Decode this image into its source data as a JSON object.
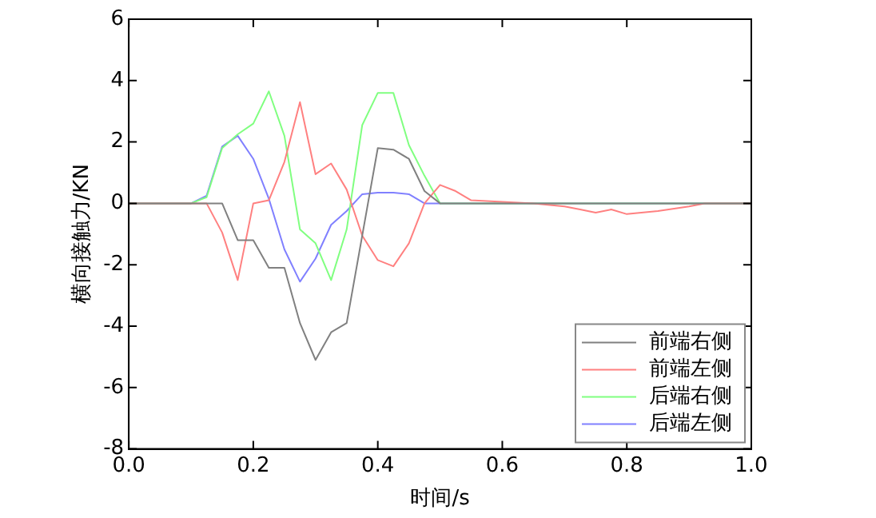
{
  "chart_data": {
    "type": "line",
    "xlabel": "时间/s",
    "ylabel": "横向接触力/KN",
    "xlim": [
      0,
      1
    ],
    "xticks": [
      {
        "value": 0,
        "label": "0.0"
      },
      0.2,
      0.4,
      0.6,
      0.8,
      {
        "value": 1,
        "label": "1.0"
      }
    ],
    "ylim": [
      -8,
      6
    ],
    "yticks": [
      -8,
      -6,
      -4,
      -2,
      0,
      2,
      4,
      6
    ],
    "grid": false,
    "legend": "bottom right",
    "marker": "none",
    "line_style": "solid",
    "series": [
      {
        "name": "前端右侧",
        "color": "#808080",
        "x": [
          0,
          0.15,
          0.175,
          0.2,
          0.225,
          0.25,
          0.275,
          0.3,
          0.325,
          0.35,
          0.4,
          0.425,
          0.45,
          0.475,
          0.5,
          1
        ],
        "values": [
          0,
          0,
          -1.2,
          -1.2,
          -2.1,
          -2.1,
          -3.9,
          -5.1,
          -4.2,
          -3.9,
          1.8,
          1.75,
          1.45,
          0.4,
          0,
          0
        ]
      },
      {
        "name": "前端左侧",
        "color": "#ff8080",
        "x": [
          0,
          0.125,
          0.15,
          0.175,
          0.2,
          0.225,
          0.25,
          0.275,
          0.3,
          0.325,
          0.35,
          0.375,
          0.4,
          0.425,
          0.45,
          0.475,
          0.5,
          0.525,
          0.55,
          0.6,
          0.65,
          0.7,
          0.725,
          0.75,
          0.775,
          0.8,
          0.85,
          0.9,
          0.925,
          1
        ],
        "values": [
          0,
          0,
          -0.95,
          -2.5,
          0,
          0.1,
          1.35,
          3.3,
          0.95,
          1.3,
          0.45,
          -1.05,
          -1.85,
          -2.05,
          -1.3,
          0,
          0.6,
          0.4,
          0.1,
          0.05,
          0,
          -0.1,
          -0.2,
          -0.3,
          -0.2,
          -0.35,
          -0.25,
          -0.1,
          0,
          0
        ]
      },
      {
        "name": "后端右侧",
        "color": "#80ff80",
        "x": [
          0,
          0.1,
          0.125,
          0.15,
          0.175,
          0.2,
          0.225,
          0.25,
          0.275,
          0.3,
          0.325,
          0.35,
          0.375,
          0.4,
          0.425,
          0.45,
          0.475,
          0.5,
          1
        ],
        "values": [
          0,
          0,
          0.2,
          1.8,
          2.25,
          2.6,
          3.65,
          2.2,
          -0.85,
          -1.3,
          -2.5,
          -0.85,
          2.55,
          3.6,
          3.6,
          1.9,
          0.9,
          0,
          0
        ]
      },
      {
        "name": "后端左侧",
        "color": "#8080ff",
        "x": [
          0,
          0.1,
          0.125,
          0.15,
          0.175,
          0.2,
          0.225,
          0.25,
          0.275,
          0.3,
          0.325,
          0.35,
          0.375,
          0.4,
          0.425,
          0.45,
          0.475,
          1
        ],
        "values": [
          0,
          0,
          0.25,
          1.85,
          2.2,
          1.45,
          0.15,
          -1.5,
          -2.55,
          -1.8,
          -0.7,
          -0.25,
          0.3,
          0.35,
          0.35,
          0.3,
          0,
          0
        ]
      }
    ]
  }
}
